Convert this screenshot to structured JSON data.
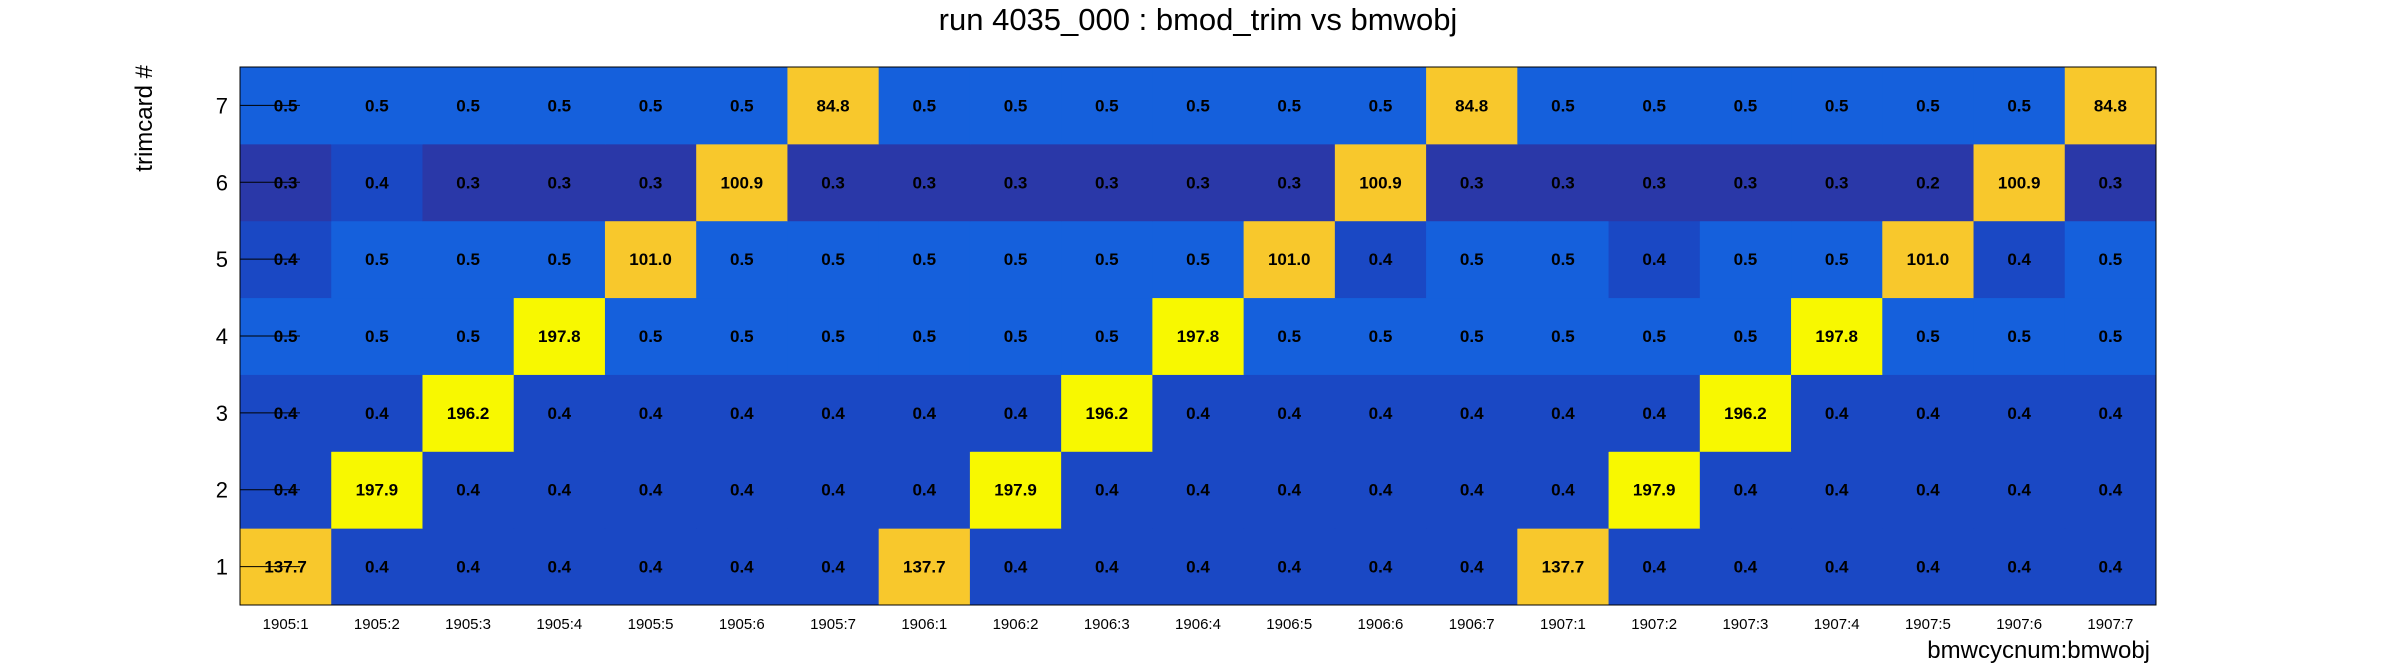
{
  "chart_data": {
    "type": "heatmap",
    "title": "run 4035_000 : bmod_trim vs bmwobj",
    "xlabel": "bmwcycnum:bmwobj",
    "ylabel": "trimcard #",
    "x_categories": [
      "1905:1",
      "1905:2",
      "1905:3",
      "1905:4",
      "1905:5",
      "1905:6",
      "1905:7",
      "1906:1",
      "1906:2",
      "1906:3",
      "1906:4",
      "1906:5",
      "1906:6",
      "1906:7",
      "1907:1",
      "1907:2",
      "1907:3",
      "1907:4",
      "1907:5",
      "1907:6",
      "1907:7"
    ],
    "y_categories": [
      "1",
      "2",
      "3",
      "4",
      "5",
      "6",
      "7"
    ],
    "values": [
      [
        137.7,
        0.4,
        0.4,
        0.4,
        0.4,
        0.4,
        0.4,
        137.7,
        0.4,
        0.4,
        0.4,
        0.4,
        0.4,
        0.4,
        137.7,
        0.4,
        0.4,
        0.4,
        0.4,
        0.4,
        0.4
      ],
      [
        0.4,
        197.9,
        0.4,
        0.4,
        0.4,
        0.4,
        0.4,
        0.4,
        197.9,
        0.4,
        0.4,
        0.4,
        0.4,
        0.4,
        0.4,
        197.9,
        0.4,
        0.4,
        0.4,
        0.4,
        0.4
      ],
      [
        0.4,
        0.4,
        196.2,
        0.4,
        0.4,
        0.4,
        0.4,
        0.4,
        0.4,
        196.2,
        0.4,
        0.4,
        0.4,
        0.4,
        0.4,
        0.4,
        196.2,
        0.4,
        0.4,
        0.4,
        0.4
      ],
      [
        0.5,
        0.5,
        0.5,
        197.8,
        0.5,
        0.5,
        0.5,
        0.5,
        0.5,
        0.5,
        197.8,
        0.5,
        0.5,
        0.5,
        0.5,
        0.5,
        0.5,
        197.8,
        0.5,
        0.5,
        0.5
      ],
      [
        0.4,
        0.5,
        0.5,
        0.5,
        101.0,
        0.5,
        0.5,
        0.5,
        0.5,
        0.5,
        0.5,
        101.0,
        0.4,
        0.5,
        0.5,
        0.4,
        0.5,
        0.5,
        101.0,
        0.4,
        0.5
      ],
      [
        0.3,
        0.4,
        0.3,
        0.3,
        0.3,
        100.9,
        0.3,
        0.3,
        0.3,
        0.3,
        0.3,
        0.3,
        100.9,
        0.3,
        0.3,
        0.3,
        0.3,
        0.3,
        0.2,
        100.9,
        0.3
      ],
      [
        0.5,
        0.5,
        0.5,
        0.5,
        0.5,
        0.5,
        84.8,
        0.5,
        0.5,
        0.5,
        0.5,
        0.5,
        0.5,
        84.8,
        0.5,
        0.5,
        0.5,
        0.5,
        0.5,
        0.5,
        84.8
      ]
    ],
    "value_labels": [
      [
        "137.7",
        "0.4",
        "0.4",
        "0.4",
        "0.4",
        "0.4",
        "0.4",
        "137.7",
        "0.4",
        "0.4",
        "0.4",
        "0.4",
        "0.4",
        "0.4",
        "137.7",
        "0.4",
        "0.4",
        "0.4",
        "0.4",
        "0.4",
        "0.4"
      ],
      [
        "0.4",
        "197.9",
        "0.4",
        "0.4",
        "0.4",
        "0.4",
        "0.4",
        "0.4",
        "197.9",
        "0.4",
        "0.4",
        "0.4",
        "0.4",
        "0.4",
        "0.4",
        "197.9",
        "0.4",
        "0.4",
        "0.4",
        "0.4",
        "0.4"
      ],
      [
        "0.4",
        "0.4",
        "196.2",
        "0.4",
        "0.4",
        "0.4",
        "0.4",
        "0.4",
        "0.4",
        "196.2",
        "0.4",
        "0.4",
        "0.4",
        "0.4",
        "0.4",
        "0.4",
        "196.2",
        "0.4",
        "0.4",
        "0.4",
        "0.4"
      ],
      [
        "0.5",
        "0.5",
        "0.5",
        "197.8",
        "0.5",
        "0.5",
        "0.5",
        "0.5",
        "0.5",
        "0.5",
        "197.8",
        "0.5",
        "0.5",
        "0.5",
        "0.5",
        "0.5",
        "0.5",
        "197.8",
        "0.5",
        "0.5",
        "0.5"
      ],
      [
        "0.4",
        "0.5",
        "0.5",
        "0.5",
        "101.0",
        "0.5",
        "0.5",
        "0.5",
        "0.5",
        "0.5",
        "0.5",
        "101.0",
        "0.4",
        "0.5",
        "0.5",
        "0.4",
        "0.5",
        "0.5",
        "101.0",
        "0.4",
        "0.5"
      ],
      [
        "0.3",
        "0.4",
        "0.3",
        "0.3",
        "0.3",
        "100.9",
        "0.3",
        "0.3",
        "0.3",
        "0.3",
        "0.3",
        "0.3",
        "100.9",
        "0.3",
        "0.3",
        "0.3",
        "0.3",
        "0.3",
        "0.2",
        "100.9",
        "0.3"
      ],
      [
        "0.5",
        "0.5",
        "0.5",
        "0.5",
        "0.5",
        "0.5",
        "84.8",
        "0.5",
        "0.5",
        "0.5",
        "0.5",
        "0.5",
        "0.5",
        "84.8",
        "0.5",
        "0.5",
        "0.5",
        "0.5",
        "0.5",
        "0.5",
        "84.8"
      ]
    ],
    "colors": {
      "low_dark": "#2a38a8",
      "low": "#1a48c4",
      "low_light": "#1560dc",
      "mid_high": "#f8c82c",
      "high": "#f8f800"
    },
    "grid": false,
    "legend": "none"
  }
}
